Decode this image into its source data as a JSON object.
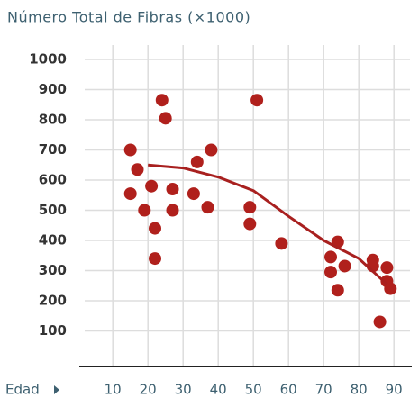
{
  "chart_data": {
    "type": "scatter",
    "title": "Número Total de Fibras (×1000)",
    "xlabel": "Edad",
    "xlim": [
      2,
      92
    ],
    "ylim": [
      0,
      1000
    ],
    "xticks": [
      10,
      20,
      30,
      40,
      50,
      60,
      70,
      80,
      90
    ],
    "yticks": [
      100,
      200,
      300,
      400,
      500,
      600,
      700,
      800,
      900,
      1000
    ],
    "grid": true,
    "series": [
      {
        "type": "scatter",
        "color": "#b0201c",
        "x": [
          15,
          17,
          15,
          19,
          21,
          22,
          22,
          24,
          25,
          27,
          27,
          33,
          34,
          37,
          38,
          51,
          49,
          49,
          58,
          72,
          72,
          74,
          74,
          76,
          84,
          84,
          86,
          88,
          88,
          89
        ],
        "values": [
          700,
          635,
          555,
          500,
          580,
          440,
          340,
          865,
          805,
          570,
          500,
          555,
          660,
          510,
          700,
          865,
          510,
          455,
          390,
          345,
          295,
          395,
          235,
          315,
          335,
          315,
          130,
          310,
          265,
          240
        ]
      },
      {
        "type": "line",
        "color": "#a8201f",
        "x": [
          20,
          30,
          40,
          50,
          60,
          70,
          80,
          88
        ],
        "values": [
          650,
          640,
          610,
          565,
          480,
          400,
          340,
          255
        ]
      }
    ]
  }
}
